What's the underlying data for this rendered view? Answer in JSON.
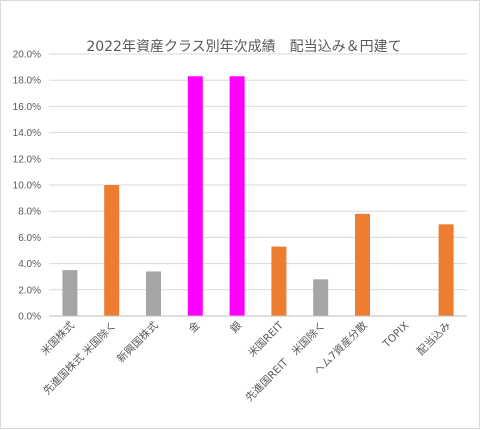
{
  "chart_data": {
    "type": "bar",
    "title": "2022年資産クラス別年次成績　配当込み＆円建て",
    "xlabel": "",
    "ylabel": "",
    "ylim": [
      0,
      0.2
    ],
    "y_tick_labels": [
      "0.0%",
      "2.0%",
      "4.0%",
      "6.0%",
      "8.0%",
      "10.0%",
      "12.0%",
      "14.0%",
      "16.0%",
      "18.0%",
      "20.0%"
    ],
    "grid": true,
    "legend": "none",
    "categories": [
      "米国株式",
      "先進国株式 米国除く",
      "新興国株式",
      "金",
      "銀",
      "米国REIT",
      "先進国REIT　米国除く",
      "ヘム7資産分散",
      "TOPIX",
      "配当込み"
    ],
    "values": [
      0.035,
      0.1,
      0.034,
      0.183,
      0.183,
      0.053,
      0.028,
      0.078,
      0,
      0.07
    ],
    "colors": [
      "#a5a5a5",
      "#ed7d31",
      "#a5a5a5",
      "#ff00ff",
      "#ff00ff",
      "#ed7d31",
      "#a5a5a5",
      "#ed7d31",
      "#ed7d31",
      "#ed7d31"
    ]
  }
}
